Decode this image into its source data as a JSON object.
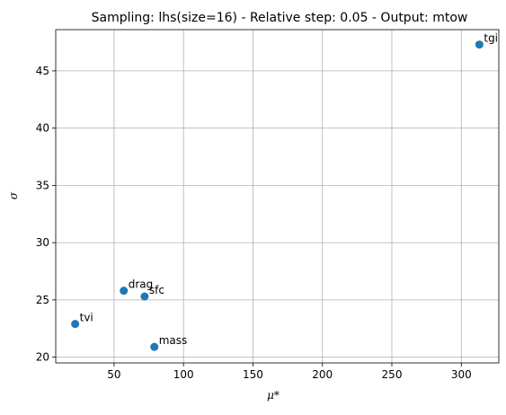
{
  "chart_data": {
    "type": "scatter",
    "title": "Sampling: lhs(size=16) - Relative step: 0.05 - Output: mtow",
    "xlabel": "μ*",
    "ylabel": "σ",
    "xlim": [
      8,
      327
    ],
    "ylim": [
      19.5,
      48.6
    ],
    "xticks": [
      50,
      100,
      150,
      200,
      250,
      300
    ],
    "yticks": [
      20,
      25,
      30,
      35,
      40,
      45
    ],
    "grid": true,
    "marker_color": "#1f77b4",
    "points": [
      {
        "label": "tgi",
        "x": 313,
        "y": 47.3
      },
      {
        "label": "drag",
        "x": 57,
        "y": 25.8
      },
      {
        "label": "sfc",
        "x": 72,
        "y": 25.3
      },
      {
        "label": "tvi",
        "x": 22,
        "y": 22.9
      },
      {
        "label": "mass",
        "x": 79,
        "y": 20.9
      }
    ]
  }
}
